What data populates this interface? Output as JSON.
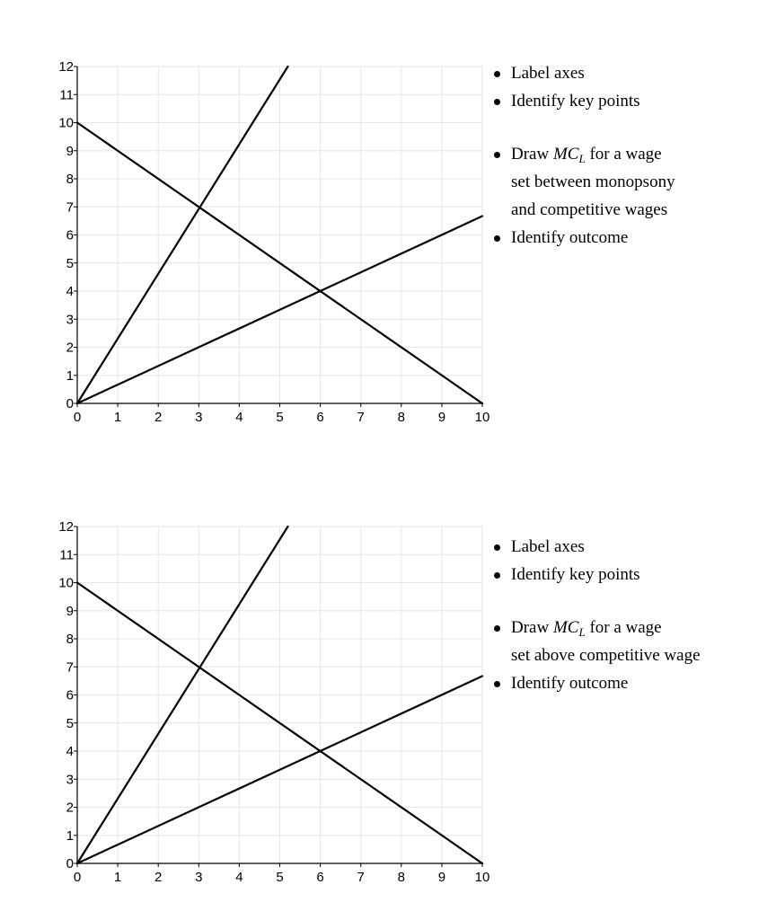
{
  "chart_data": [
    {
      "type": "line",
      "title": "",
      "xlabel": "",
      "ylabel": "",
      "xlim": [
        0,
        10
      ],
      "ylim": [
        0,
        12
      ],
      "xticks": [
        0,
        1,
        2,
        3,
        4,
        5,
        6,
        7,
        8,
        9,
        10
      ],
      "yticks": [
        0,
        1,
        2,
        3,
        4,
        5,
        6,
        7,
        8,
        9,
        10,
        11,
        12
      ],
      "grid": true,
      "series": [
        {
          "x": [
            0,
            10
          ],
          "y": [
            10,
            0
          ]
        },
        {
          "x": [
            0,
            5.2
          ],
          "y": [
            0,
            12
          ]
        },
        {
          "x": [
            0,
            10
          ],
          "y": [
            0,
            6.67
          ]
        }
      ]
    },
    {
      "type": "line",
      "title": "",
      "xlabel": "",
      "ylabel": "",
      "xlim": [
        0,
        10
      ],
      "ylim": [
        0,
        12
      ],
      "xticks": [
        0,
        1,
        2,
        3,
        4,
        5,
        6,
        7,
        8,
        9,
        10
      ],
      "yticks": [
        0,
        1,
        2,
        3,
        4,
        5,
        6,
        7,
        8,
        9,
        10,
        11,
        12
      ],
      "grid": true,
      "series": [
        {
          "x": [
            0,
            10
          ],
          "y": [
            10,
            0
          ]
        },
        {
          "x": [
            0,
            5.2
          ],
          "y": [
            0,
            12
          ]
        },
        {
          "x": [
            0,
            10
          ],
          "y": [
            0,
            6.67
          ]
        }
      ]
    }
  ],
  "panels": [
    {
      "bullets": {
        "label_axes": "Label axes",
        "key_points": "Identify key points",
        "draw_pre": "Draw ",
        "draw_math": "MC",
        "draw_sub": "L",
        "draw_post": " for a wage",
        "draw_line2": "set between monopsony",
        "draw_line3": "and competitive wages",
        "outcome": "Identify outcome"
      }
    },
    {
      "bullets": {
        "label_axes": "Label axes",
        "key_points": "Identify key points",
        "draw_pre": "Draw ",
        "draw_math": "MC",
        "draw_sub": "L",
        "draw_post": " for a wage",
        "draw_line2": "set above competitive wage",
        "outcome": "Identify outcome"
      }
    }
  ],
  "colors": {
    "line": "#000000",
    "grid": "#e6e6e6",
    "axis": "#000000"
  }
}
